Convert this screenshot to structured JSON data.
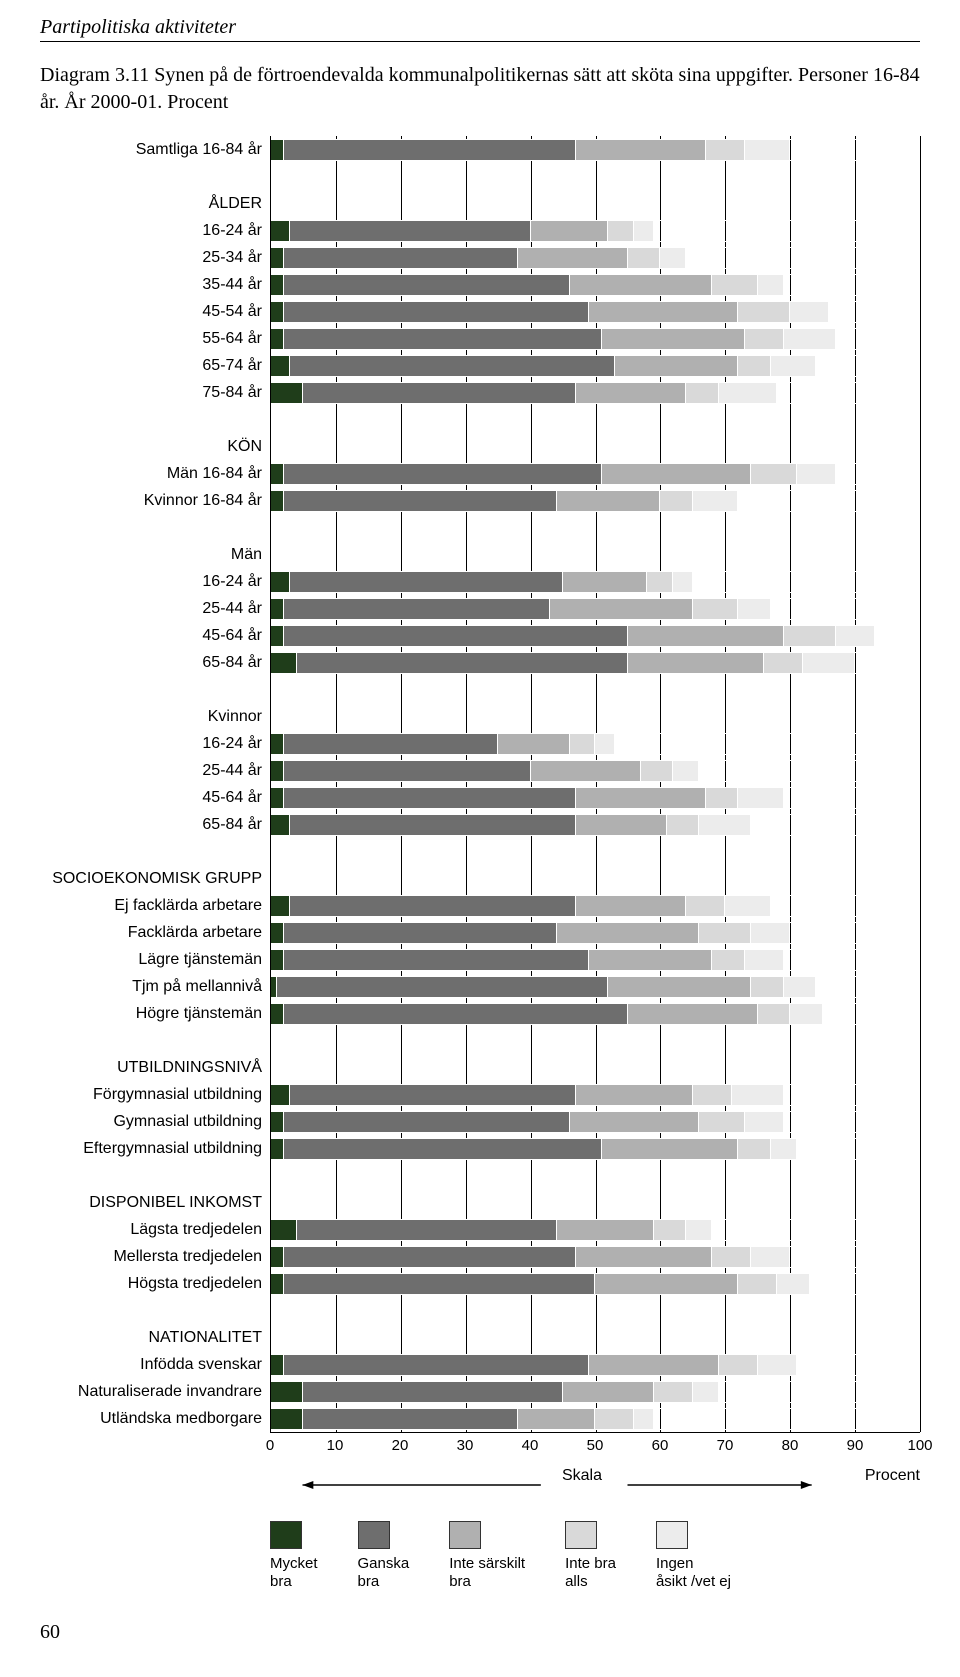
{
  "header": "Partipolitiska aktiviteter",
  "title": "Diagram 3.11  Synen på de förtroendevalda kommunalpolitikernas sätt att sköta sina uppgifter. Personer 16-84 år. År 2000-01. Procent",
  "colors": {
    "mycket_bra": "#1f3d1a",
    "ganska_bra": "#6e6e6e",
    "inte_sarskilt_bra": "#b0b0b0",
    "inte_bra_alls": "#d9d9d9",
    "ingen_asikt": "#ececec",
    "grid": "#000000",
    "background": "#ffffff"
  },
  "xaxis": {
    "min": 0,
    "max": 100,
    "ticks": [
      0,
      10,
      20,
      30,
      40,
      50,
      60,
      70,
      80,
      90,
      100
    ]
  },
  "skala_label": "Skala",
  "procent_label": "Procent",
  "legend": [
    {
      "label": "Mycket\nbra",
      "colorKey": "mycket_bra"
    },
    {
      "label": "Ganska\nbra",
      "colorKey": "ganska_bra"
    },
    {
      "label": "Inte särskilt\nbra",
      "colorKey": "inte_sarskilt_bra"
    },
    {
      "label": "Inte bra\nalls",
      "colorKey": "inte_bra_alls"
    },
    {
      "label": "Ingen\nåsikt /vet ej",
      "colorKey": "ingen_asikt"
    }
  ],
  "rows": [
    {
      "type": "bar",
      "label": "Samtliga 16-84 år",
      "values": [
        2,
        45,
        20,
        6,
        7
      ]
    },
    {
      "type": "spacer"
    },
    {
      "type": "section",
      "label": "ÅLDER"
    },
    {
      "type": "bar",
      "label": "16-24 år",
      "values": [
        3,
        37,
        12,
        4,
        3
      ]
    },
    {
      "type": "bar",
      "label": "25-34 år",
      "values": [
        2,
        36,
        17,
        5,
        4
      ]
    },
    {
      "type": "bar",
      "label": "35-44 år",
      "values": [
        2,
        44,
        22,
        7,
        4
      ]
    },
    {
      "type": "bar",
      "label": "45-54 år",
      "values": [
        2,
        47,
        23,
        8,
        6
      ]
    },
    {
      "type": "bar",
      "label": "55-64 år",
      "values": [
        2,
        49,
        22,
        6,
        8
      ]
    },
    {
      "type": "bar",
      "label": "65-74 år",
      "values": [
        3,
        50,
        19,
        5,
        7
      ]
    },
    {
      "type": "bar",
      "label": "75-84 år",
      "values": [
        5,
        42,
        17,
        5,
        9
      ]
    },
    {
      "type": "spacer"
    },
    {
      "type": "section",
      "label": "KÖN"
    },
    {
      "type": "bar",
      "label": "Män 16-84 år",
      "values": [
        2,
        49,
        23,
        7,
        6
      ]
    },
    {
      "type": "bar",
      "label": "Kvinnor 16-84 år",
      "values": [
        2,
        42,
        16,
        5,
        7
      ]
    },
    {
      "type": "spacer"
    },
    {
      "type": "section",
      "label": "Män"
    },
    {
      "type": "bar",
      "label": "16-24 år",
      "values": [
        3,
        42,
        13,
        4,
        3
      ]
    },
    {
      "type": "bar",
      "label": "25-44 år",
      "values": [
        2,
        41,
        22,
        7,
        5
      ]
    },
    {
      "type": "bar",
      "label": "45-64 år",
      "values": [
        2,
        53,
        24,
        8,
        6
      ]
    },
    {
      "type": "bar",
      "label": "65-84 år",
      "values": [
        4,
        51,
        21,
        6,
        8
      ]
    },
    {
      "type": "spacer"
    },
    {
      "type": "section",
      "label": "Kvinnor"
    },
    {
      "type": "bar",
      "label": "16-24 år",
      "values": [
        2,
        33,
        11,
        4,
        3
      ]
    },
    {
      "type": "bar",
      "label": "25-44 år",
      "values": [
        2,
        38,
        17,
        5,
        4
      ]
    },
    {
      "type": "bar",
      "label": "45-64 år",
      "values": [
        2,
        45,
        20,
        5,
        7
      ]
    },
    {
      "type": "bar",
      "label": "65-84 år",
      "values": [
        3,
        44,
        14,
        5,
        8
      ]
    },
    {
      "type": "spacer"
    },
    {
      "type": "section",
      "label": "SOCIOEKONOMISK GRUPP"
    },
    {
      "type": "bar",
      "label": "Ej facklärda arbetare",
      "values": [
        3,
        44,
        17,
        6,
        7
      ]
    },
    {
      "type": "bar",
      "label": "Facklärda arbetare",
      "values": [
        2,
        42,
        22,
        8,
        6
      ]
    },
    {
      "type": "bar",
      "label": "Lägre tjänstemän",
      "values": [
        2,
        47,
        19,
        5,
        6
      ]
    },
    {
      "type": "bar",
      "label": "Tjm på mellannivå",
      "values": [
        1,
        51,
        22,
        5,
        5
      ]
    },
    {
      "type": "bar",
      "label": "Högre tjänstemän",
      "values": [
        2,
        53,
        20,
        5,
        5
      ]
    },
    {
      "type": "spacer"
    },
    {
      "type": "section",
      "label": "UTBILDNINGSNIVÅ"
    },
    {
      "type": "bar",
      "label": "Förgymnasial utbildning",
      "values": [
        3,
        44,
        18,
        6,
        8
      ]
    },
    {
      "type": "bar",
      "label": "Gymnasial utbildning",
      "values": [
        2,
        44,
        20,
        7,
        6
      ]
    },
    {
      "type": "bar",
      "label": "Eftergymnasial utbildning",
      "values": [
        2,
        49,
        21,
        5,
        4
      ]
    },
    {
      "type": "spacer"
    },
    {
      "type": "section",
      "label": "DISPONIBEL INKOMST"
    },
    {
      "type": "bar",
      "label": "Lägsta tredjedelen",
      "values": [
        4,
        40,
        15,
        5,
        4
      ]
    },
    {
      "type": "bar",
      "label": "Mellersta tredjedelen",
      "values": [
        2,
        45,
        21,
        6,
        6
      ]
    },
    {
      "type": "bar",
      "label": "Högsta tredjedelen",
      "values": [
        2,
        48,
        22,
        6,
        5
      ]
    },
    {
      "type": "spacer"
    },
    {
      "type": "section",
      "label": "NATIONALITET"
    },
    {
      "type": "bar",
      "label": "Infödda svenskar",
      "values": [
        2,
        47,
        20,
        6,
        6
      ]
    },
    {
      "type": "bar",
      "label": "Naturaliserade invandrare",
      "values": [
        5,
        40,
        14,
        6,
        4
      ]
    },
    {
      "type": "bar",
      "label": "Utländska medborgare",
      "values": [
        5,
        33,
        12,
        6,
        3
      ]
    }
  ],
  "page_number": "60"
}
